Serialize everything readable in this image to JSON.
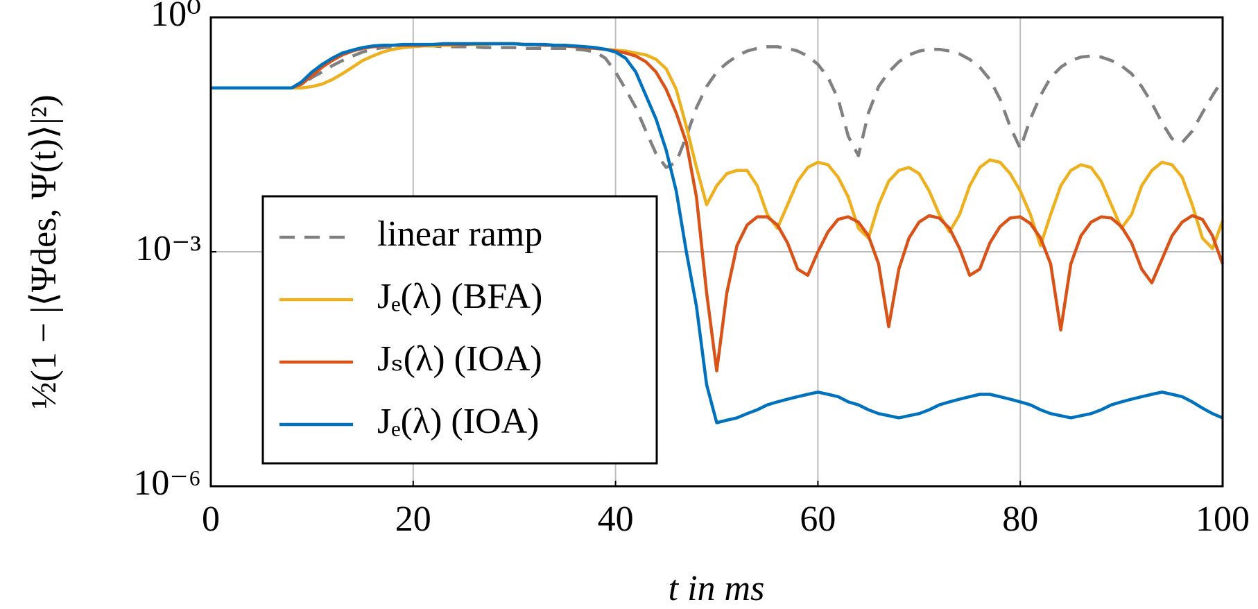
{
  "chart_data": {
    "type": "line",
    "xlabel": "t in ms",
    "ylabel": "½(1 − |⟨Ψdes, Ψ(t)⟩|²)",
    "log_y": true,
    "grid": true,
    "legend": "lower left",
    "xlim": [
      0,
      100
    ],
    "xticks": [
      0,
      20,
      40,
      60,
      80,
      100
    ],
    "ylim": [
      1e-06,
      1
    ],
    "yticks": [
      {
        "value": 1e-06,
        "label": "10⁻⁶"
      },
      {
        "value": 0.001,
        "label": "10⁻³"
      },
      {
        "value": 1,
        "label": "10⁰"
      }
    ],
    "x": [
      0,
      1,
      2,
      3,
      4,
      5,
      6,
      7,
      8,
      9,
      10,
      11,
      12,
      13,
      14,
      15,
      16,
      17,
      18,
      19,
      20,
      21,
      22,
      23,
      24,
      25,
      26,
      27,
      28,
      29,
      30,
      31,
      32,
      33,
      34,
      35,
      36,
      37,
      38,
      39,
      40,
      41,
      42,
      43,
      44,
      45,
      46,
      47,
      48,
      49,
      50,
      51,
      52,
      53,
      54,
      55,
      56,
      57,
      58,
      59,
      60,
      61,
      62,
      63,
      64,
      65,
      66,
      67,
      68,
      69,
      70,
      71,
      72,
      73,
      74,
      75,
      76,
      77,
      78,
      79,
      80,
      81,
      82,
      83,
      84,
      85,
      86,
      87,
      88,
      89,
      90,
      91,
      92,
      93,
      94,
      95,
      96,
      97,
      98,
      99,
      100
    ],
    "series": [
      {
        "name": "linear ramp",
        "color": "#808080",
        "style": "dashed",
        "values": [
          0.125,
          0.125,
          0.125,
          0.125,
          0.125,
          0.125,
          0.125,
          0.125,
          0.125,
          0.14,
          0.17,
          0.2,
          0.24,
          0.28,
          0.32,
          0.36,
          0.39,
          0.41,
          0.42,
          0.43,
          0.43,
          0.43,
          0.43,
          0.42,
          0.42,
          0.42,
          0.42,
          0.41,
          0.41,
          0.41,
          0.41,
          0.4,
          0.4,
          0.4,
          0.4,
          0.4,
          0.39,
          0.38,
          0.36,
          0.3,
          0.2,
          0.12,
          0.07,
          0.035,
          0.018,
          0.012,
          0.014,
          0.03,
          0.07,
          0.13,
          0.2,
          0.26,
          0.32,
          0.37,
          0.4,
          0.42,
          0.42,
          0.4,
          0.37,
          0.32,
          0.25,
          0.17,
          0.09,
          0.03,
          0.017,
          0.06,
          0.13,
          0.2,
          0.27,
          0.33,
          0.37,
          0.39,
          0.39,
          0.37,
          0.34,
          0.29,
          0.23,
          0.16,
          0.09,
          0.04,
          0.021,
          0.05,
          0.1,
          0.17,
          0.23,
          0.28,
          0.31,
          0.32,
          0.31,
          0.28,
          0.24,
          0.19,
          0.13,
          0.08,
          0.045,
          0.028,
          0.025,
          0.035,
          0.06,
          0.1,
          0.16
        ]
      },
      {
        "name": "Jₑ(λ) (BFA)",
        "color": "#EDB120",
        "style": "solid",
        "values": [
          0.125,
          0.125,
          0.125,
          0.125,
          0.125,
          0.125,
          0.125,
          0.125,
          0.125,
          0.125,
          0.13,
          0.14,
          0.16,
          0.19,
          0.23,
          0.28,
          0.32,
          0.36,
          0.39,
          0.41,
          0.42,
          0.43,
          0.43,
          0.44,
          0.44,
          0.45,
          0.45,
          0.45,
          0.46,
          0.46,
          0.46,
          0.45,
          0.45,
          0.44,
          0.44,
          0.43,
          0.42,
          0.41,
          0.4,
          0.39,
          0.38,
          0.37,
          0.35,
          0.33,
          0.29,
          0.22,
          0.12,
          0.04,
          0.012,
          0.004,
          0.007,
          0.01,
          0.011,
          0.011,
          0.007,
          0.003,
          0.002,
          0.004,
          0.008,
          0.012,
          0.014,
          0.013,
          0.009,
          0.005,
          0.002,
          0.0015,
          0.004,
          0.008,
          0.011,
          0.012,
          0.01,
          0.006,
          0.003,
          0.0018,
          0.003,
          0.007,
          0.012,
          0.015,
          0.014,
          0.01,
          0.006,
          0.003,
          0.0012,
          0.003,
          0.007,
          0.011,
          0.013,
          0.012,
          0.008,
          0.004,
          0.002,
          0.003,
          0.007,
          0.011,
          0.014,
          0.013,
          0.009,
          0.004,
          0.0015,
          0.0011,
          0.0025
        ]
      },
      {
        "name": "Jₛ(λ) (IOA)",
        "color": "#D95319",
        "style": "solid",
        "values": [
          0.125,
          0.125,
          0.125,
          0.125,
          0.125,
          0.125,
          0.125,
          0.125,
          0.125,
          0.14,
          0.18,
          0.23,
          0.28,
          0.33,
          0.37,
          0.4,
          0.42,
          0.43,
          0.44,
          0.44,
          0.44,
          0.44,
          0.45,
          0.45,
          0.45,
          0.45,
          0.46,
          0.46,
          0.46,
          0.46,
          0.46,
          0.45,
          0.45,
          0.44,
          0.44,
          0.43,
          0.42,
          0.41,
          0.4,
          0.39,
          0.37,
          0.35,
          0.32,
          0.27,
          0.2,
          0.12,
          0.06,
          0.025,
          0.005,
          0.0003,
          3e-05,
          0.0003,
          0.0012,
          0.0022,
          0.0028,
          0.0028,
          0.0022,
          0.0013,
          0.0006,
          0.0005,
          0.001,
          0.0018,
          0.0026,
          0.0028,
          0.0024,
          0.0016,
          0.0007,
          0.00011,
          0.0006,
          0.0015,
          0.0024,
          0.0029,
          0.0027,
          0.002,
          0.0011,
          0.0005,
          0.0006,
          0.0013,
          0.0021,
          0.0027,
          0.0028,
          0.0023,
          0.0015,
          0.0007,
          0.0001,
          0.0007,
          0.0016,
          0.0024,
          0.0028,
          0.0027,
          0.0021,
          0.0013,
          0.0006,
          0.0004,
          0.0008,
          0.0016,
          0.0024,
          0.0029,
          0.0026,
          0.0016,
          0.0007
        ]
      },
      {
        "name": "Jₑ(λ) (IOA)",
        "color": "#0072BD",
        "style": "solid",
        "values": [
          0.125,
          0.125,
          0.125,
          0.125,
          0.125,
          0.125,
          0.125,
          0.125,
          0.125,
          0.15,
          0.2,
          0.25,
          0.3,
          0.35,
          0.38,
          0.41,
          0.43,
          0.44,
          0.44,
          0.45,
          0.45,
          0.45,
          0.45,
          0.46,
          0.46,
          0.46,
          0.46,
          0.46,
          0.46,
          0.46,
          0.46,
          0.45,
          0.45,
          0.45,
          0.44,
          0.44,
          0.43,
          0.42,
          0.41,
          0.39,
          0.36,
          0.3,
          0.2,
          0.1,
          0.05,
          0.02,
          0.006,
          0.001,
          0.0002,
          2e-05,
          6.5e-06,
          7e-06,
          7.5e-06,
          8.5e-06,
          9.5e-06,
          1.1e-05,
          1.2e-05,
          1.3e-05,
          1.4e-05,
          1.5e-05,
          1.6e-05,
          1.5e-05,
          1.4e-05,
          1.2e-05,
          1.1e-05,
          9.5e-06,
          8.5e-06,
          8e-06,
          7.5e-06,
          8e-06,
          8.5e-06,
          9.5e-06,
          1.1e-05,
          1.2e-05,
          1.3e-05,
          1.4e-05,
          1.5e-05,
          1.5e-05,
          1.4e-05,
          1.3e-05,
          1.2e-05,
          1.1e-05,
          9.5e-06,
          8.5e-06,
          8e-06,
          7.5e-06,
          8e-06,
          8.5e-06,
          9.5e-06,
          1.1e-05,
          1.2e-05,
          1.3e-05,
          1.4e-05,
          1.5e-05,
          1.6e-05,
          1.5e-05,
          1.4e-05,
          1.2e-05,
          1e-05,
          8.5e-06,
          7.5e-06
        ]
      }
    ]
  }
}
